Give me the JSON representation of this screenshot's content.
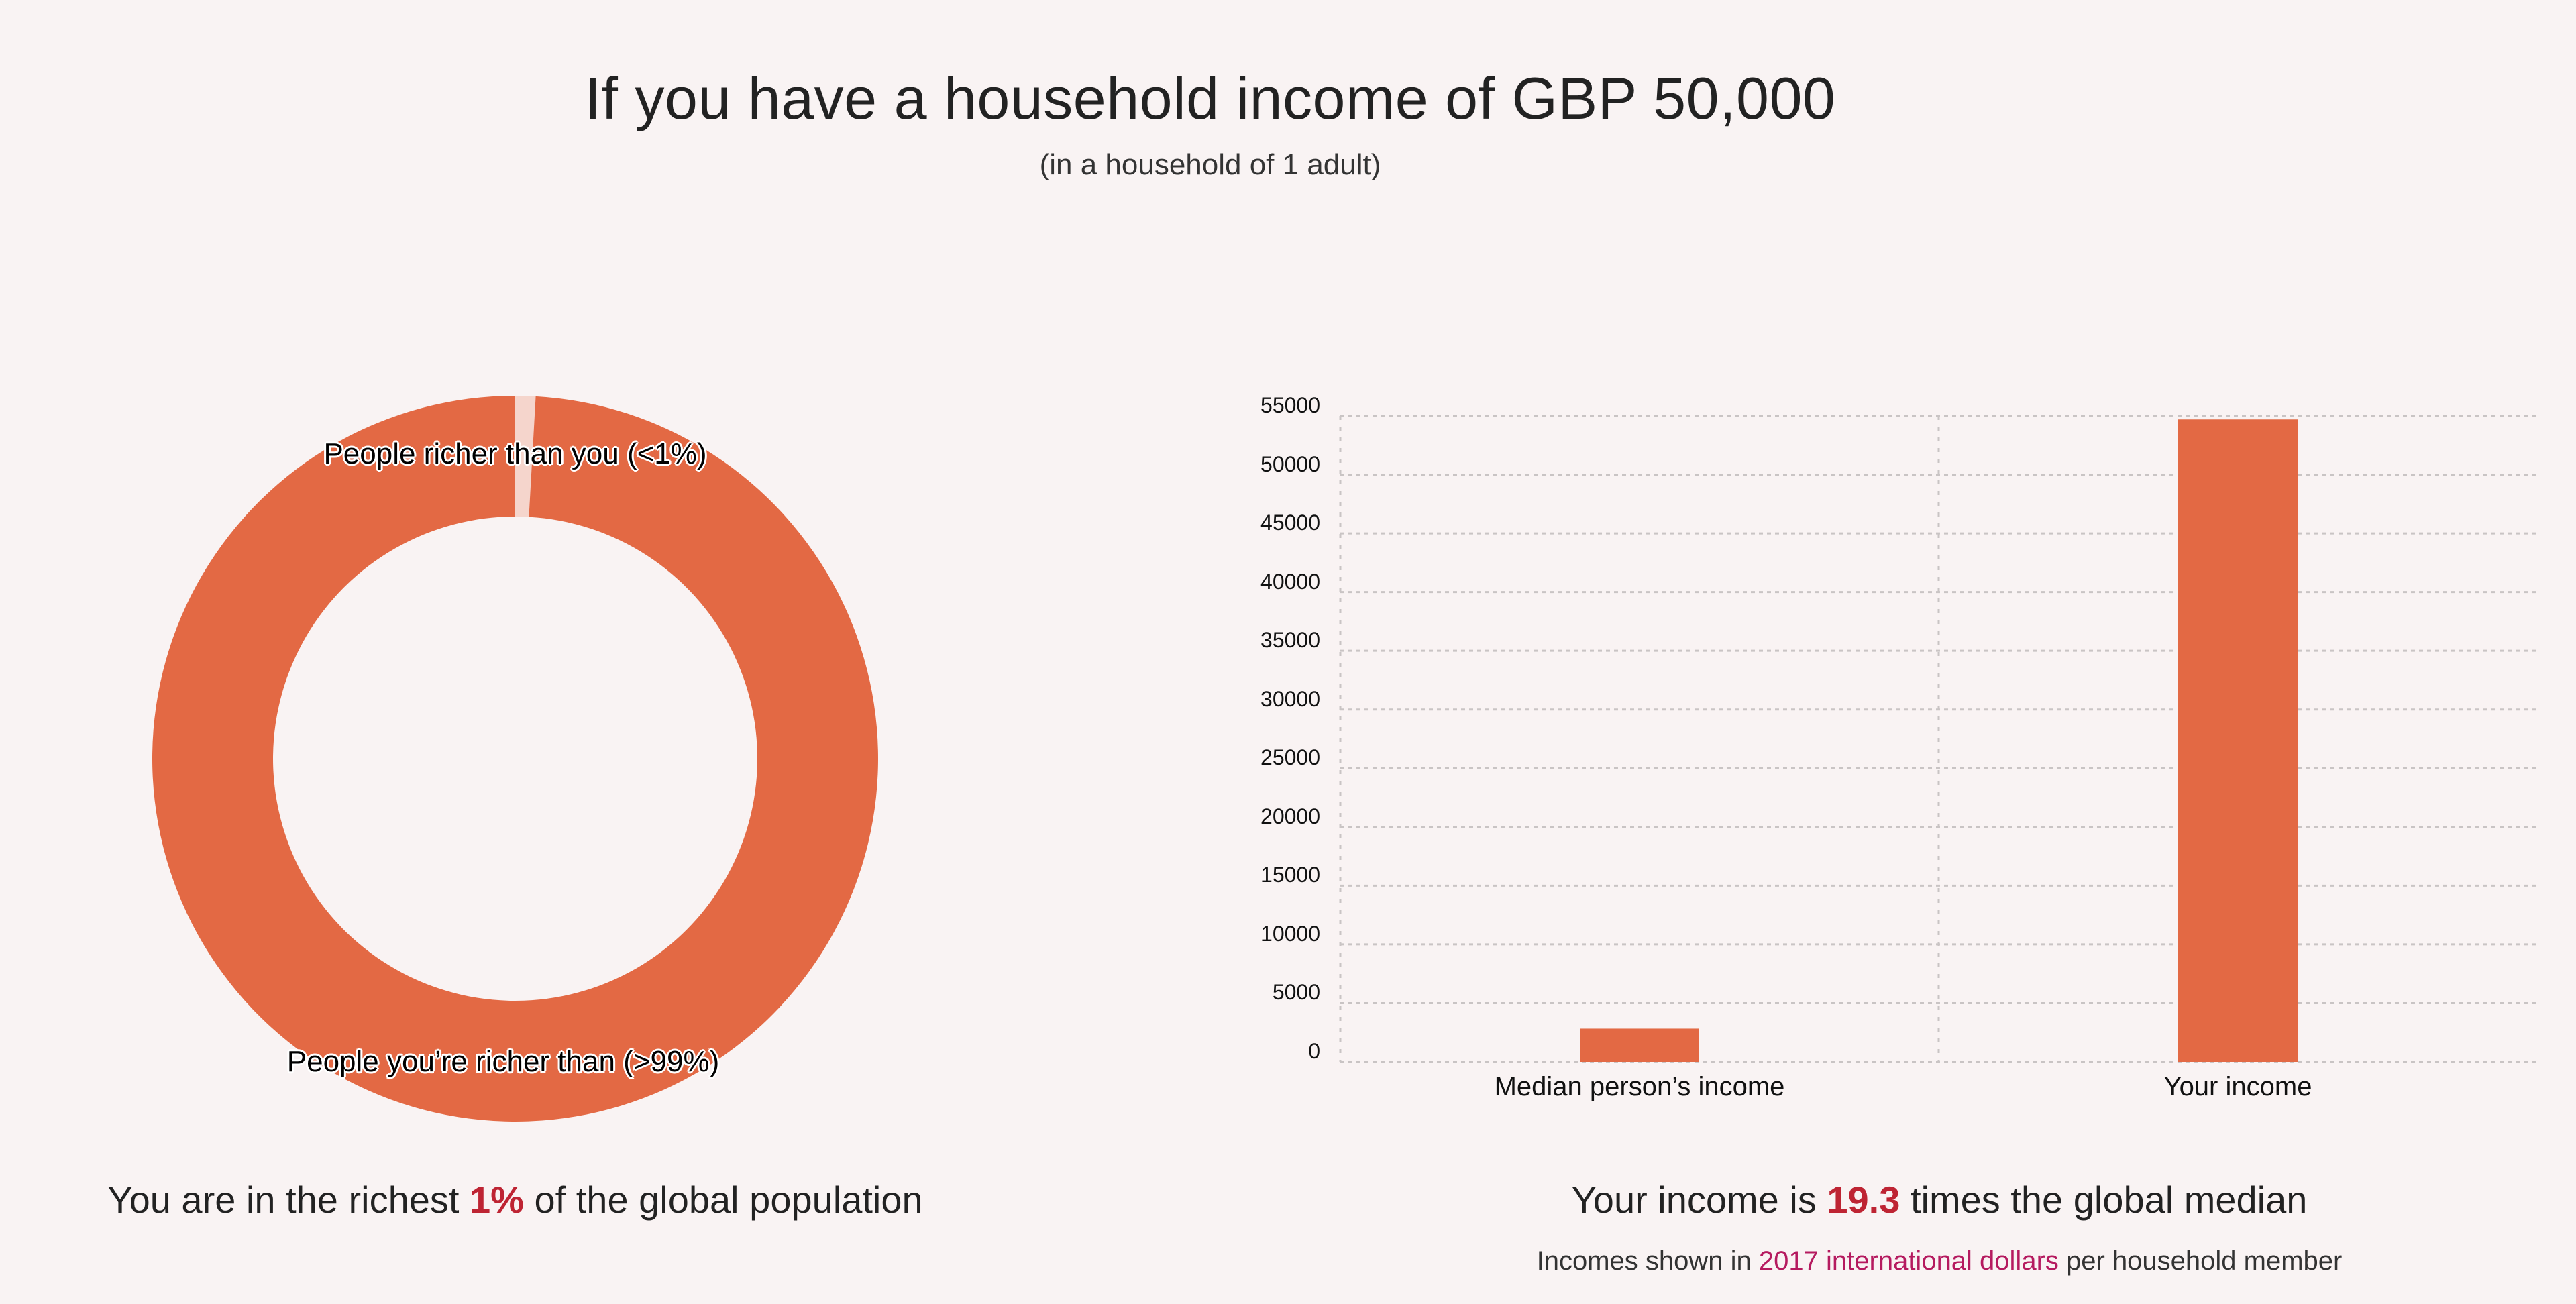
{
  "header": {
    "title": "If you have a household income of GBP 50,000",
    "subtitle": "(in a household of 1 adult)"
  },
  "colors": {
    "background": "#f9f3f3",
    "bar": "#e36944",
    "donut_main": "#e36944",
    "donut_minor": "#f5d5cc",
    "highlight": "#be2433",
    "link": "#b51a5f",
    "gridline": "#c9c4c4"
  },
  "donut": {
    "label_top": "People richer than you (<1%)",
    "label_bottom": "People you’re richer than (>99%)",
    "summary_prefix": "You are in the richest ",
    "summary_highlight": "1%",
    "summary_suffix": " of the global population"
  },
  "bar": {
    "summary_prefix": "Your income is ",
    "summary_highlight": "19.3",
    "summary_suffix": " times the global median",
    "footnote_prefix": "Incomes shown in ",
    "footnote_link": "2017 international dollars",
    "footnote_suffix": " per household member",
    "y_ticks": [
      "55000",
      "50000",
      "45000",
      "40000",
      "35000",
      "30000",
      "25000",
      "20000",
      "15000",
      "10000",
      "5000",
      "0"
    ],
    "x_labels": [
      "Median person’s income",
      "Your income"
    ]
  },
  "chart_data": [
    {
      "type": "pie",
      "subtype": "donut",
      "title": "",
      "categories": [
        "People richer than you (<1%)",
        "People you’re richer than (>99%)"
      ],
      "values": [
        0.9,
        99.1
      ],
      "colors": [
        "#f5d5cc",
        "#e36944"
      ],
      "annotation": "You are in the richest 1% of the global population"
    },
    {
      "type": "bar",
      "title": "",
      "categories": [
        "Median person’s income",
        "Your income"
      ],
      "values": [
        2830,
        54700
      ],
      "xlabel": "",
      "ylabel": "",
      "ylim": [
        0,
        55000
      ],
      "yticks": [
        0,
        5000,
        10000,
        15000,
        20000,
        25000,
        30000,
        35000,
        40000,
        45000,
        50000,
        55000
      ],
      "grid": true,
      "annotation": "Your income is 19.3 times the global median",
      "footnote": "Incomes shown in 2017 international dollars per household member"
    }
  ]
}
